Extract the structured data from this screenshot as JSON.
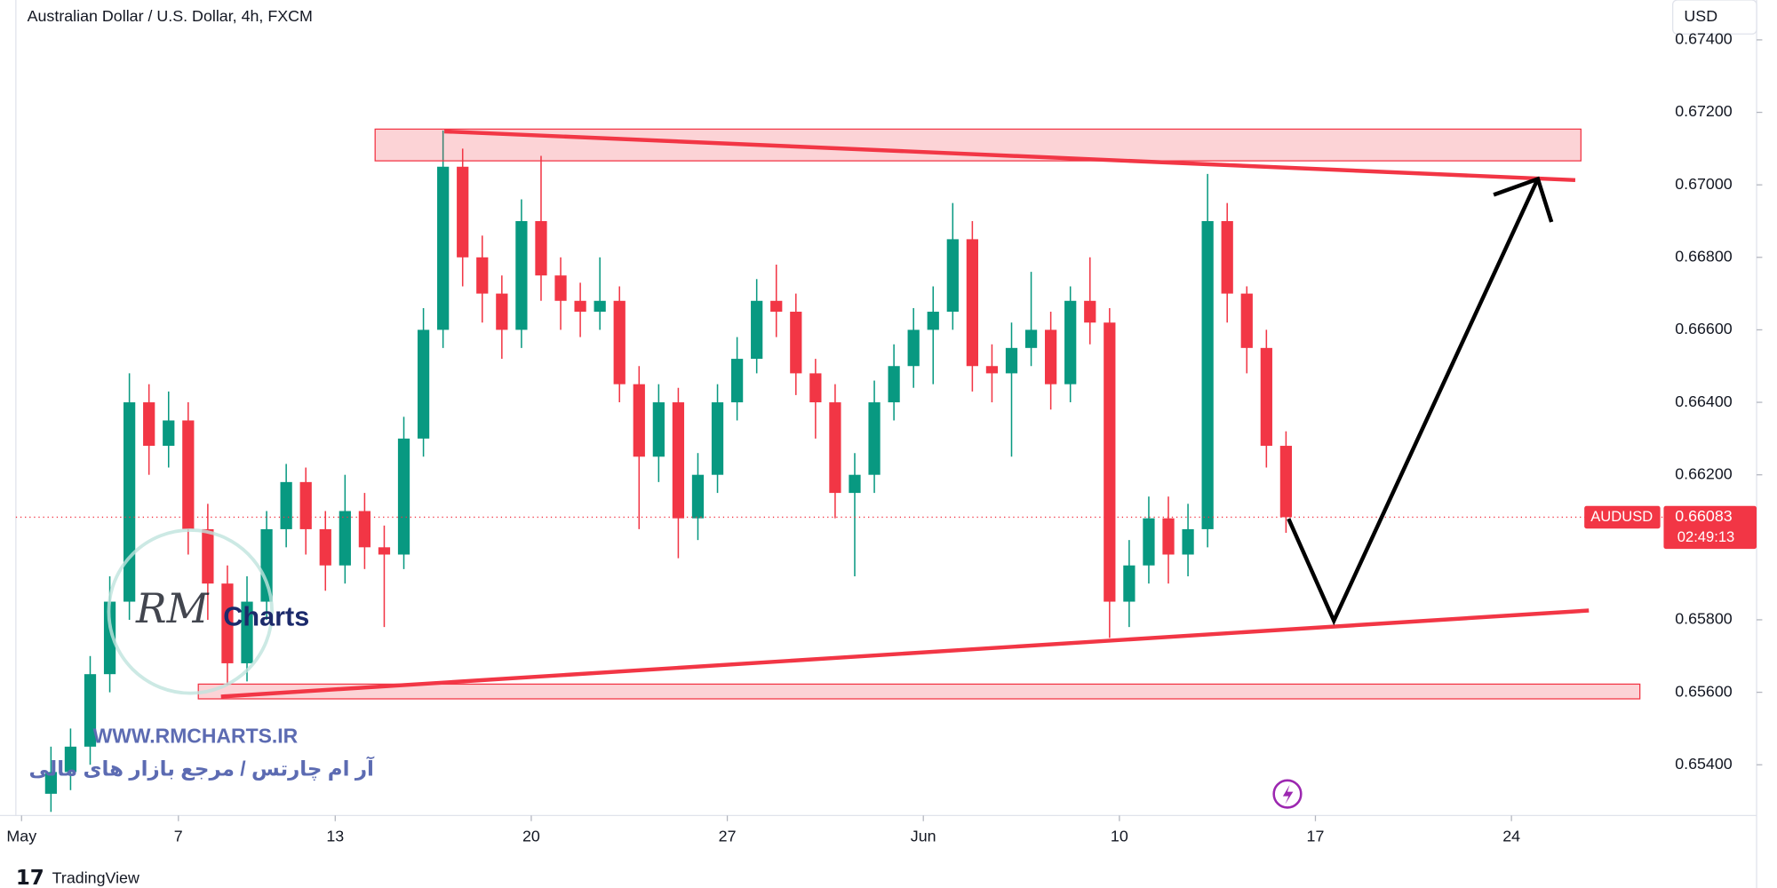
{
  "chart_data": {
    "type": "candlestick",
    "title": "Australian Dollar / U.S. Dollar, 4h, FXCM",
    "currency": "USD",
    "symbol": "AUDUSD",
    "last_price": 0.66083,
    "countdown": "02:49:13",
    "up_color": "#089981",
    "down_color": "#f23645",
    "xlim": [
      -0.55,
      41.94
    ],
    "ylim": [
      0.6526,
      0.6751
    ],
    "xticks": [
      {
        "value": 0,
        "label": "May"
      },
      {
        "value": 4,
        "label": "7"
      },
      {
        "value": 8,
        "label": "13"
      },
      {
        "value": 13,
        "label": "20"
      },
      {
        "value": 18,
        "label": "27"
      },
      {
        "value": 23,
        "label": "Jun"
      },
      {
        "value": 28,
        "label": "10"
      },
      {
        "value": 33,
        "label": "17"
      },
      {
        "value": 38,
        "label": "24"
      }
    ],
    "yticks": [
      {
        "value": 0.654,
        "label": "0.65400"
      },
      {
        "value": 0.656,
        "label": "0.65600"
      },
      {
        "value": 0.658,
        "label": "0.65800"
      },
      {
        "value": 0.662,
        "label": "0.66200"
      },
      {
        "value": 0.664,
        "label": "0.66400"
      },
      {
        "value": 0.666,
        "label": "0.66600"
      },
      {
        "value": 0.668,
        "label": "0.66800"
      },
      {
        "value": 0.67,
        "label": "0.67000"
      },
      {
        "value": 0.672,
        "label": "0.67200"
      },
      {
        "value": 0.674,
        "label": "0.67400"
      }
    ],
    "x": [
      0.75,
      1.25,
      1.75,
      2.25,
      2.75,
      3.25,
      3.75,
      4.25,
      4.75,
      5.25,
      5.75,
      6.25,
      6.75,
      7.25,
      7.75,
      8.25,
      8.75,
      9.25,
      9.75,
      10.25,
      10.75,
      11.25,
      11.75,
      12.25,
      12.75,
      13.25,
      13.75,
      14.25,
      14.75,
      15.25,
      15.75,
      16.25,
      16.75,
      17.25,
      17.75,
      18.25,
      18.75,
      19.25,
      19.75,
      20.25,
      20.75,
      21.25,
      21.75,
      22.25,
      22.75,
      23.25,
      23.75,
      24.25,
      24.75,
      25.25,
      25.75,
      26.25,
      26.75,
      27.25,
      27.75,
      28.25,
      28.75,
      29.25,
      29.75,
      30.25,
      30.75,
      31.25,
      31.75,
      32.25
    ],
    "open": [
      0.6532,
      0.6538,
      0.6545,
      0.6565,
      0.6585,
      0.664,
      0.6628,
      0.6635,
      0.6605,
      0.659,
      0.6568,
      0.6585,
      0.6605,
      0.6618,
      0.6605,
      0.6595,
      0.661,
      0.66,
      0.6598,
      0.663,
      0.666,
      0.6705,
      0.668,
      0.667,
      0.666,
      0.669,
      0.6675,
      0.6668,
      0.6665,
      0.6668,
      0.6645,
      0.6625,
      0.664,
      0.6608,
      0.662,
      0.664,
      0.6652,
      0.6668,
      0.6665,
      0.6648,
      0.664,
      0.6615,
      0.662,
      0.664,
      0.665,
      0.666,
      0.6665,
      0.6685,
      0.665,
      0.6648,
      0.6655,
      0.666,
      0.6645,
      0.6668,
      0.6662,
      0.6585,
      0.6595,
      0.6608,
      0.6598,
      0.6605,
      0.669,
      0.667,
      0.6655,
      0.6628
    ],
    "high": [
      0.6545,
      0.655,
      0.657,
      0.6592,
      0.6648,
      0.6645,
      0.6643,
      0.664,
      0.6612,
      0.6595,
      0.6592,
      0.661,
      0.6623,
      0.6622,
      0.661,
      0.662,
      0.6615,
      0.6606,
      0.6636,
      0.6666,
      0.6715,
      0.671,
      0.6686,
      0.6675,
      0.6696,
      0.6708,
      0.668,
      0.6673,
      0.668,
      0.6672,
      0.665,
      0.6645,
      0.6644,
      0.6626,
      0.6645,
      0.6658,
      0.6674,
      0.6678,
      0.667,
      0.6652,
      0.6645,
      0.6626,
      0.6646,
      0.6656,
      0.6666,
      0.6672,
      0.6695,
      0.669,
      0.6656,
      0.6662,
      0.6676,
      0.6665,
      0.6672,
      0.668,
      0.6666,
      0.6602,
      0.6614,
      0.6614,
      0.6612,
      0.6703,
      0.6695,
      0.6672,
      0.666,
      0.6632
    ],
    "low": [
      0.6527,
      0.6533,
      0.654,
      0.656,
      0.658,
      0.662,
      0.6622,
      0.6598,
      0.658,
      0.6562,
      0.6563,
      0.658,
      0.66,
      0.6598,
      0.6588,
      0.659,
      0.6594,
      0.6578,
      0.6594,
      0.6625,
      0.6655,
      0.6672,
      0.6662,
      0.6652,
      0.6655,
      0.6668,
      0.666,
      0.6658,
      0.666,
      0.664,
      0.6605,
      0.6618,
      0.6597,
      0.6602,
      0.6615,
      0.6635,
      0.6648,
      0.6658,
      0.6642,
      0.663,
      0.6608,
      0.6592,
      0.6615,
      0.6635,
      0.6644,
      0.6645,
      0.666,
      0.6643,
      0.664,
      0.6625,
      0.665,
      0.6638,
      0.664,
      0.6656,
      0.6575,
      0.6578,
      0.659,
      0.659,
      0.6592,
      0.66,
      0.6662,
      0.6648,
      0.6622,
      0.6604
    ],
    "close": [
      0.6538,
      0.6545,
      0.6565,
      0.6585,
      0.664,
      0.6628,
      0.6635,
      0.6605,
      0.659,
      0.6568,
      0.6585,
      0.6605,
      0.6618,
      0.6605,
      0.6595,
      0.661,
      0.66,
      0.6598,
      0.663,
      0.666,
      0.6705,
      0.668,
      0.667,
      0.666,
      0.669,
      0.6675,
      0.6668,
      0.6665,
      0.6668,
      0.6645,
      0.6625,
      0.664,
      0.6608,
      0.662,
      0.664,
      0.6652,
      0.6668,
      0.6665,
      0.6648,
      0.664,
      0.6615,
      0.662,
      0.664,
      0.665,
      0.666,
      0.6665,
      0.6685,
      0.665,
      0.6648,
      0.6655,
      0.666,
      0.6645,
      0.6668,
      0.6662,
      0.6585,
      0.6595,
      0.6608,
      0.6598,
      0.6605,
      0.669,
      0.667,
      0.6655,
      0.6628,
      0.66083
    ]
  },
  "watermark": {
    "logo": "Charts",
    "website": "WWW.RMCHARTS.IR",
    "tagline": "آر ام چارتس / مرجع بازار های مالی"
  },
  "footer": {
    "brand": "TradingView"
  }
}
